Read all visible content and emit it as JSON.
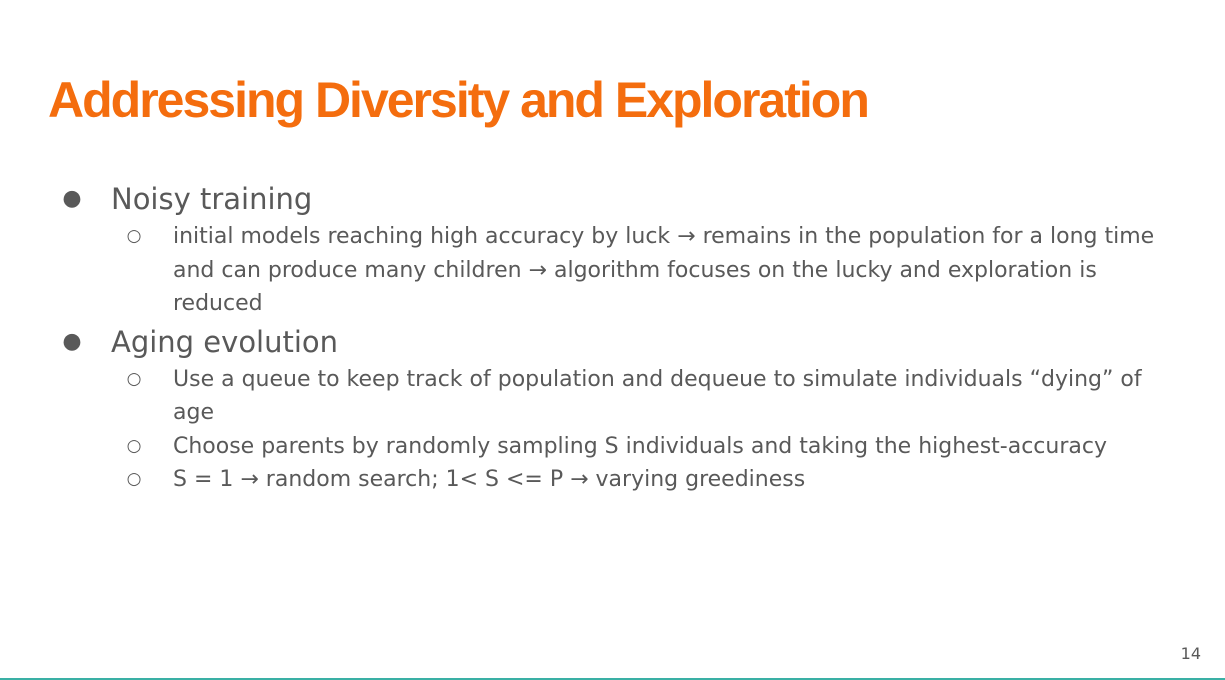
{
  "slide": {
    "title": "Addressing Diversity and Exploration",
    "page_number": "14",
    "sections": [
      {
        "heading": "Noisy training",
        "items": [
          "initial models reaching high accuracy by luck → remains in the population for a long time and can produce many children → algorithm focuses on the lucky and exploration is reduced"
        ]
      },
      {
        "heading": "Aging evolution",
        "items": [
          "Use a queue to keep track of population and dequeue to simulate individuals “dying” of age",
          "Choose parents by randomly sampling S individuals and taking the highest-accuracy",
          "S = 1 → random search; 1< S <= P → varying greediness"
        ]
      }
    ],
    "bullet_glyphs": {
      "level1": "●",
      "level2": "○"
    },
    "colors": {
      "title": "#f46d0e",
      "body_text": "#595959",
      "accent_rule": "#3ab0a5"
    }
  }
}
